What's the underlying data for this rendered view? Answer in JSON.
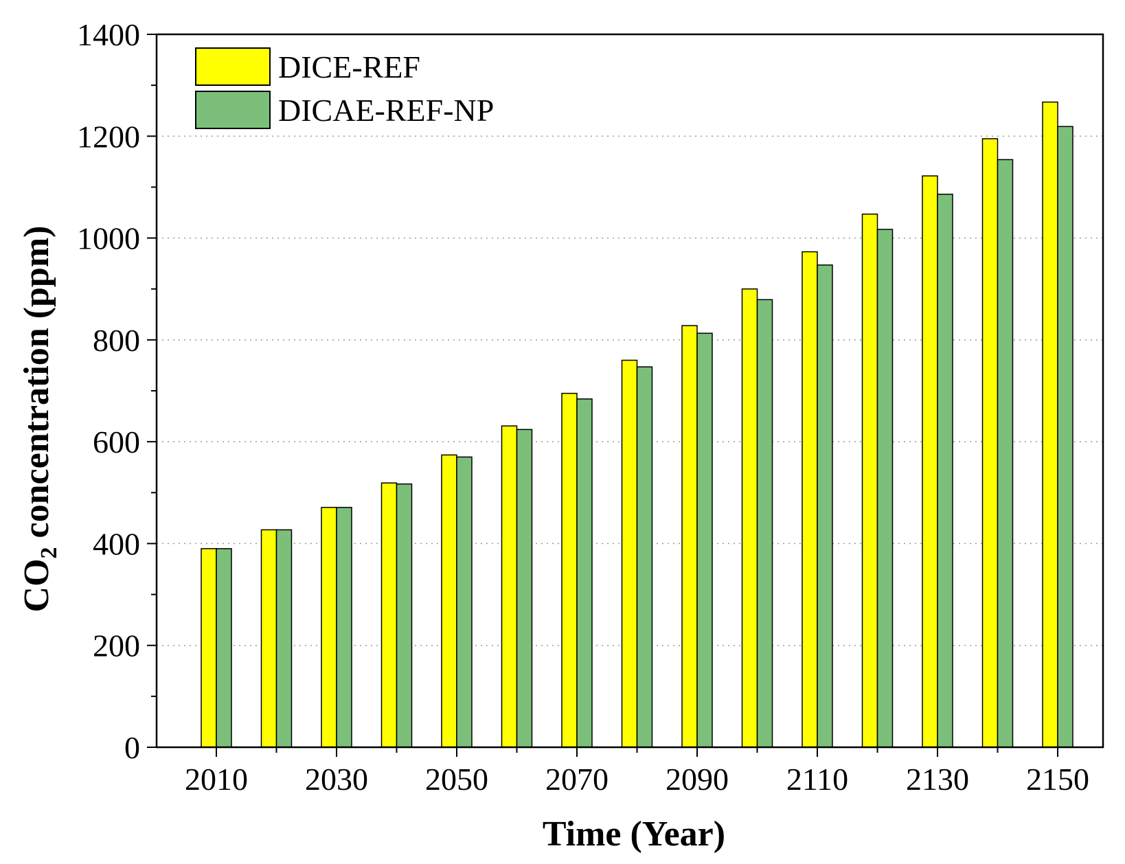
{
  "chart_data": {
    "type": "bar",
    "xlabel": "Time (Year)",
    "ylabel": {
      "prefix": "CO",
      "subscript": "2",
      "suffix": " concentration (ppm)"
    },
    "ylim": [
      0,
      1400
    ],
    "yticks": [
      0,
      200,
      400,
      600,
      800,
      1000,
      1200,
      1400
    ],
    "grid": "horizontal dotted",
    "legend_position": "top-left",
    "categories": [
      2010,
      2020,
      2030,
      2040,
      2050,
      2060,
      2070,
      2080,
      2090,
      2100,
      2110,
      2120,
      2130,
      2140,
      2150
    ],
    "xtick_labels": [
      "2010",
      "2030",
      "2050",
      "2070",
      "2090",
      "2110",
      "2130",
      "2150"
    ],
    "series": [
      {
        "name": "DICE-REF",
        "color": "#ffff00",
        "values": [
          390,
          427,
          471,
          519,
          574,
          631,
          695,
          760,
          828,
          900,
          973,
          1047,
          1122,
          1195,
          1267
        ]
      },
      {
        "name": "DICAE-REF-NP",
        "color": "#7bbf7a",
        "values": [
          390,
          427,
          471,
          517,
          570,
          624,
          684,
          747,
          813,
          879,
          947,
          1017,
          1086,
          1154,
          1219
        ]
      }
    ]
  }
}
